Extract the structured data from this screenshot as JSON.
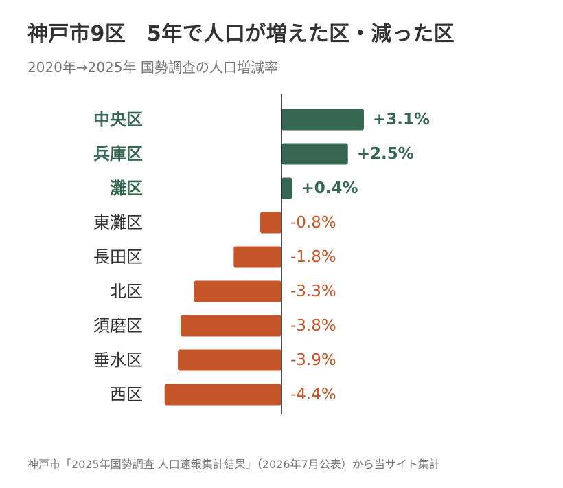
{
  "title": "神戸市9区　5年で人口が増えた区・減った区",
  "subtitle": "2020年→2025年 国勢調査の人口増減率",
  "footer": "神戸市「2025年国勢調査 人口速報集計結果」（2026年7月公表）から当サイト集計",
  "colors": {
    "increase": "#386751",
    "decrease": "#c5562a",
    "axis": "#222222",
    "label_default": "#333333"
  },
  "chart_data": {
    "type": "bar",
    "orientation": "horizontal",
    "categories": [
      "中央区",
      "兵庫区",
      "灘区",
      "東灘区",
      "長田区",
      "北区",
      "須磨区",
      "垂水区",
      "西区"
    ],
    "values": [
      3.1,
      2.5,
      0.4,
      -0.8,
      -1.8,
      -3.3,
      -3.8,
      -3.9,
      -4.4
    ],
    "value_labels": [
      "+3.1%",
      "+2.5%",
      "+0.4%",
      "-0.8%",
      "-1.8%",
      "-3.3%",
      "-3.8%",
      "-3.9%",
      "-4.4%"
    ],
    "unit": "%",
    "xlim": [
      -4.4,
      3.1
    ],
    "grid": false,
    "legend": "none"
  }
}
